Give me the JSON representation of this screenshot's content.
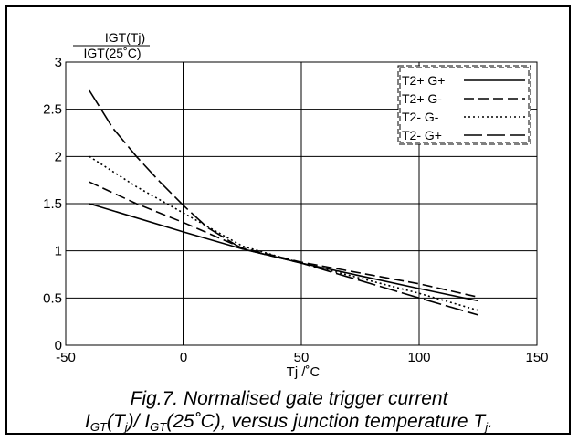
{
  "chart_data": {
    "type": "line",
    "ylabel_num": "IGT(Tj)",
    "ylabel_den": "IGT(25˚C)",
    "xlabel": "Tj /˚C",
    "xlim": [
      -50,
      150
    ],
    "ylim": [
      0,
      3
    ],
    "xticks": [
      "-50",
      "0",
      "50",
      "100",
      "150"
    ],
    "yticks": [
      "0",
      "0.5",
      "1",
      "1.5",
      "2",
      "2.5",
      "3"
    ],
    "grid": true,
    "legend_position": "top-right",
    "series": [
      {
        "name": "T2+ G+",
        "style": "solid",
        "x": [
          -40,
          0,
          25,
          50,
          100,
          125
        ],
        "y": [
          1.5,
          1.2,
          1.02,
          0.87,
          0.6,
          0.47
        ]
      },
      {
        "name": "T2+ G-",
        "style": "dashed",
        "x": [
          -40,
          -20,
          0,
          25,
          50,
          100,
          125
        ],
        "y": [
          1.73,
          1.5,
          1.3,
          1.03,
          0.88,
          0.65,
          0.51
        ]
      },
      {
        "name": "T2- G-",
        "style": "dotted",
        "x": [
          -40,
          -20,
          0,
          25,
          50,
          100,
          125
        ],
        "y": [
          2.0,
          1.68,
          1.4,
          1.05,
          0.87,
          0.55,
          0.37
        ]
      },
      {
        "name": "T2- G+",
        "style": "longdash",
        "x": [
          -40,
          -30,
          -20,
          -10,
          0,
          10,
          25,
          50,
          100,
          125
        ],
        "y": [
          2.7,
          2.3,
          2.0,
          1.73,
          1.48,
          1.25,
          1.02,
          0.87,
          0.5,
          0.32
        ]
      }
    ]
  },
  "caption": {
    "line1": "Fig.7.   Normalised gate trigger current",
    "line2_a": "I",
    "line2_a_sub": "GT",
    "line2_b": "(T",
    "line2_b_sub": "j",
    "line2_c": ")/ I",
    "line2_c_sub": "GT",
    "line2_d": "(25˚C), versus junction temperature T",
    "line2_d_sub": "j",
    "line2_e": "."
  }
}
